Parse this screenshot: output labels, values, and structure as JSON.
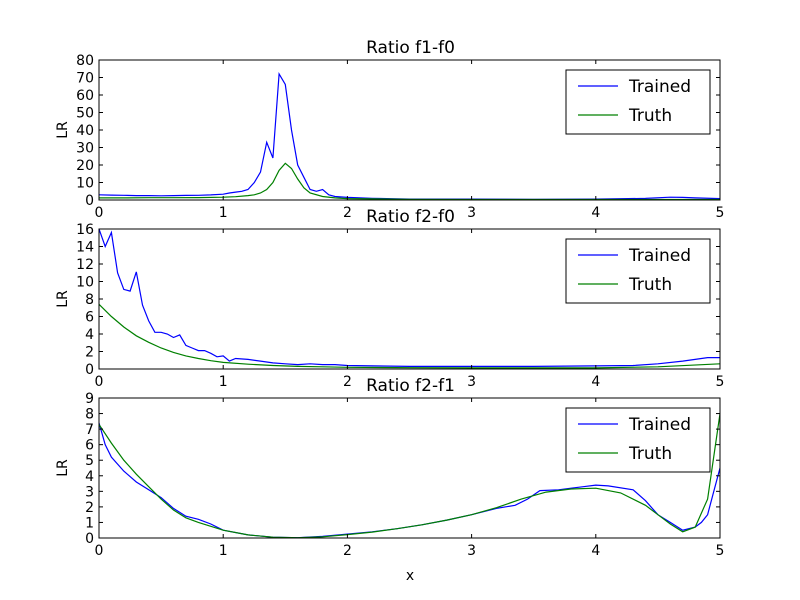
{
  "colors": {
    "trained": "#0000ff",
    "truth": "#008000"
  },
  "xlabel": "x",
  "chart_data": [
    {
      "type": "line",
      "title": "Ratio f1-f0",
      "ylabel": "LR",
      "xlim": [
        0,
        5
      ],
      "ylim": [
        0,
        80
      ],
      "xticks": [
        0,
        1,
        2,
        3,
        4,
        5
      ],
      "yticks": [
        0,
        10,
        20,
        30,
        40,
        50,
        60,
        70,
        80
      ],
      "legend": {
        "entries": [
          "Trained",
          "Truth"
        ],
        "position": "upper right"
      },
      "series": [
        {
          "name": "Trained",
          "color": "#0000ff",
          "x": [
            0,
            0.1,
            0.2,
            0.3,
            0.4,
            0.5,
            0.6,
            0.7,
            0.8,
            0.9,
            1.0,
            1.05,
            1.1,
            1.15,
            1.2,
            1.25,
            1.3,
            1.35,
            1.4,
            1.45,
            1.5,
            1.55,
            1.6,
            1.65,
            1.7,
            1.75,
            1.8,
            1.85,
            1.9,
            2.0,
            2.2,
            2.5,
            3.0,
            3.5,
            4.0,
            4.4,
            4.6,
            4.7,
            4.8,
            5.0
          ],
          "y": [
            3,
            2.8,
            2.7,
            2.5,
            2.5,
            2.4,
            2.5,
            2.6,
            2.7,
            2.9,
            3.3,
            4,
            4.5,
            5,
            6,
            10,
            16,
            33,
            24,
            72,
            66,
            40,
            20,
            13,
            6,
            5,
            6,
            3,
            2,
            1.5,
            1,
            0.5,
            0.5,
            0.4,
            0.5,
            0.9,
            1.6,
            1.5,
            1.2,
            0.8
          ]
        },
        {
          "name": "Truth",
          "color": "#008000",
          "x": [
            0,
            0.2,
            0.4,
            0.6,
            0.8,
            1.0,
            1.1,
            1.2,
            1.25,
            1.3,
            1.35,
            1.4,
            1.45,
            1.5,
            1.55,
            1.6,
            1.65,
            1.7,
            1.8,
            1.9,
            2.0,
            2.5,
            3.0,
            3.5,
            4.0,
            4.5,
            5.0
          ],
          "y": [
            1.2,
            1.2,
            1.3,
            1.3,
            1.4,
            1.6,
            1.9,
            2.5,
            3,
            4,
            6,
            10,
            17,
            21,
            18,
            12,
            7,
            4,
            2,
            1.2,
            0.8,
            0.4,
            0.3,
            0.3,
            0.3,
            0.3,
            0.3
          ]
        }
      ]
    },
    {
      "type": "line",
      "title": "Ratio f2-f0",
      "ylabel": "LR",
      "xlim": [
        0,
        5
      ],
      "ylim": [
        0,
        16
      ],
      "xticks": [
        0,
        1,
        2,
        3,
        4,
        5
      ],
      "yticks": [
        0,
        2,
        4,
        6,
        8,
        10,
        12,
        14,
        16
      ],
      "legend": {
        "entries": [
          "Trained",
          "Truth"
        ],
        "position": "upper right"
      },
      "series": [
        {
          "name": "Trained",
          "color": "#0000ff",
          "x": [
            0,
            0.05,
            0.1,
            0.15,
            0.2,
            0.25,
            0.3,
            0.35,
            0.4,
            0.45,
            0.5,
            0.55,
            0.6,
            0.65,
            0.7,
            0.75,
            0.8,
            0.85,
            0.9,
            0.95,
            1.0,
            1.05,
            1.1,
            1.2,
            1.3,
            1.4,
            1.5,
            1.6,
            1.7,
            1.8,
            1.9,
            2.0,
            2.5,
            3.0,
            3.5,
            4.0,
            4.3,
            4.5,
            4.7,
            4.9,
            5.0
          ],
          "y": [
            16,
            14,
            15.6,
            11,
            9.1,
            8.9,
            11.1,
            7.3,
            5.5,
            4.2,
            4.2,
            4,
            3.6,
            3.9,
            2.7,
            2.4,
            2.1,
            2.1,
            1.8,
            1.4,
            1.5,
            0.9,
            1.2,
            1.1,
            0.9,
            0.7,
            0.6,
            0.5,
            0.6,
            0.5,
            0.5,
            0.4,
            0.3,
            0.3,
            0.3,
            0.35,
            0.4,
            0.6,
            0.9,
            1.3,
            1.3
          ]
        },
        {
          "name": "Truth",
          "color": "#008000",
          "x": [
            0,
            0.1,
            0.2,
            0.3,
            0.4,
            0.5,
            0.6,
            0.7,
            0.8,
            0.9,
            1.0,
            1.2,
            1.4,
            1.6,
            1.8,
            2.0,
            2.5,
            3.0,
            3.5,
            4.0,
            4.5,
            5.0
          ],
          "y": [
            7.4,
            6,
            4.8,
            3.8,
            3.05,
            2.4,
            1.9,
            1.5,
            1.2,
            0.95,
            0.75,
            0.55,
            0.4,
            0.3,
            0.25,
            0.2,
            0.15,
            0.12,
            0.12,
            0.13,
            0.25,
            0.6
          ]
        }
      ]
    },
    {
      "type": "line",
      "title": "Ratio f2-f1",
      "ylabel": "LR",
      "xlim": [
        0,
        5
      ],
      "ylim": [
        0,
        9
      ],
      "xticks": [
        0,
        1,
        2,
        3,
        4,
        5
      ],
      "yticks": [
        0,
        1,
        2,
        3,
        4,
        5,
        6,
        7,
        8,
        9
      ],
      "legend": {
        "entries": [
          "Trained",
          "Truth"
        ],
        "position": "upper right"
      },
      "series": [
        {
          "name": "Trained",
          "color": "#0000ff",
          "x": [
            0,
            0.05,
            0.1,
            0.2,
            0.3,
            0.4,
            0.5,
            0.6,
            0.7,
            0.8,
            0.9,
            1.0,
            1.2,
            1.4,
            1.6,
            1.8,
            2.0,
            2.2,
            2.4,
            2.6,
            2.8,
            3.0,
            3.2,
            3.35,
            3.45,
            3.55,
            3.7,
            3.8,
            3.9,
            4.0,
            4.1,
            4.3,
            4.4,
            4.5,
            4.6,
            4.7,
            4.8,
            4.85,
            4.9,
            4.95,
            5.0
          ],
          "y": [
            7.4,
            6,
            5.2,
            4.3,
            3.6,
            3.1,
            2.6,
            1.9,
            1.4,
            1.2,
            0.9,
            0.5,
            0.2,
            0.05,
            0.02,
            0.1,
            0.25,
            0.4,
            0.6,
            0.85,
            1.15,
            1.5,
            1.9,
            2.1,
            2.5,
            3.05,
            3.1,
            3.2,
            3.3,
            3.4,
            3.35,
            3.1,
            2.4,
            1.5,
            1,
            0.5,
            0.7,
            1,
            1.5,
            3,
            4.5
          ]
        },
        {
          "name": "Truth",
          "color": "#008000",
          "x": [
            0,
            0.1,
            0.2,
            0.3,
            0.4,
            0.5,
            0.6,
            0.7,
            0.8,
            0.9,
            1.0,
            1.2,
            1.4,
            1.6,
            1.8,
            2.0,
            2.2,
            2.4,
            2.6,
            2.8,
            3.0,
            3.2,
            3.4,
            3.6,
            3.8,
            4.0,
            4.2,
            4.4,
            4.5,
            4.6,
            4.7,
            4.8,
            4.9,
            5.0
          ],
          "y": [
            7.3,
            6.1,
            5,
            4.1,
            3.3,
            2.5,
            1.8,
            1.3,
            1,
            0.75,
            0.5,
            0.2,
            0.05,
            0.02,
            0.08,
            0.22,
            0.38,
            0.6,
            0.85,
            1.15,
            1.5,
            1.95,
            2.5,
            2.95,
            3.15,
            3.2,
            2.9,
            2.1,
            1.5,
            0.9,
            0.4,
            0.7,
            2.5,
            8
          ]
        }
      ]
    }
  ]
}
